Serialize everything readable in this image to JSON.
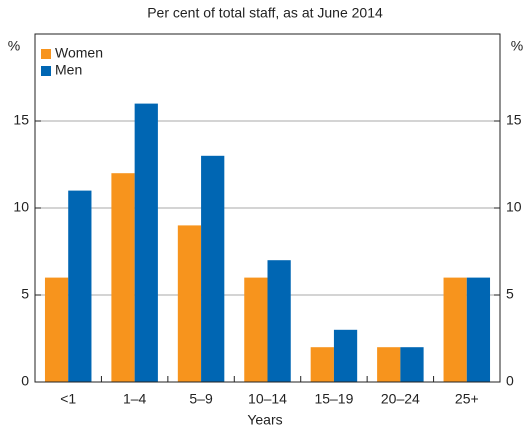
{
  "chart_data": {
    "type": "bar",
    "subtitle": "Per cent of total staff, as at June 2014",
    "xlabel": "Years",
    "ylabel": "%",
    "categories": [
      "<1",
      "1–4",
      "5–9",
      "10–14",
      "15–19",
      "20–24",
      "25+"
    ],
    "series": [
      {
        "name": "Women",
        "color": "#f7941d",
        "values": [
          6,
          12,
          9,
          6,
          2,
          2,
          6
        ]
      },
      {
        "name": "Men",
        "color": "#0066b3",
        "values": [
          11,
          16,
          13,
          7,
          3,
          2,
          6
        ]
      }
    ],
    "ylim": [
      0,
      20
    ],
    "yticks": [
      0,
      5,
      10,
      15
    ],
    "grid": true,
    "legend": "upper left"
  }
}
